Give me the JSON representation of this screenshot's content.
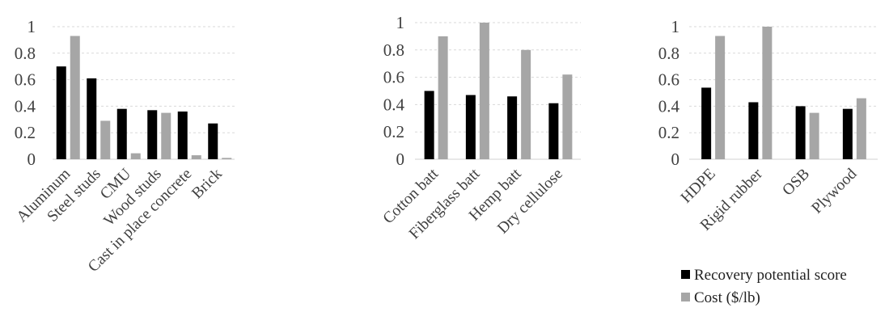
{
  "chart_data": [
    {
      "type": "bar",
      "categories": [
        "Aluminum",
        "Steel studs",
        "CMU",
        "Wood studs",
        "Cast in place concrete",
        "Brick"
      ],
      "series": [
        {
          "name": "Recovery potential score",
          "values": [
            0.7,
            0.61,
            0.38,
            0.37,
            0.36,
            0.27
          ]
        },
        {
          "name": "Cost ($/lb)",
          "values": [
            0.93,
            0.29,
            0.045,
            0.35,
            0.03,
            0.01
          ]
        }
      ],
      "yticks": [
        "0",
        "0.2",
        "0.4",
        "0.6",
        "0.8",
        "1"
      ],
      "ylim": [
        0,
        1
      ],
      "grid": true
    },
    {
      "type": "bar",
      "categories": [
        "Cotton batt",
        "Fiberglass batt",
        "Hemp batt",
        "Dry cellulose"
      ],
      "series": [
        {
          "name": "Recovery potential score",
          "values": [
            0.5,
            0.47,
            0.46,
            0.41
          ]
        },
        {
          "name": "Cost ($/lb)",
          "values": [
            0.9,
            1.0,
            0.8,
            0.62
          ]
        }
      ],
      "yticks": [
        "0",
        "0.2",
        "0.4",
        "0.6",
        "0.8",
        "1"
      ],
      "ylim": [
        0,
        1
      ],
      "grid": true
    },
    {
      "type": "bar",
      "categories": [
        "HDPE",
        "Rigid rubber",
        "OSB",
        "Plywood"
      ],
      "series": [
        {
          "name": "Recovery potential score",
          "values": [
            0.54,
            0.43,
            0.4,
            0.38
          ]
        },
        {
          "name": "Cost ($/lb)",
          "values": [
            0.93,
            1.0,
            0.35,
            0.46
          ]
        }
      ],
      "yticks": [
        "0",
        "0.2",
        "0.4",
        "0.6",
        "0.8",
        "1"
      ],
      "ylim": [
        0,
        1
      ],
      "grid": true
    }
  ],
  "legend": {
    "placement": "bottom-right",
    "items": [
      {
        "label": "Recovery potential score",
        "color": "#000000"
      },
      {
        "label": "Cost ($/lb)",
        "color": "#a6a6a6"
      }
    ]
  },
  "colors": {
    "series1": "#000000",
    "series2": "#a6a6a6",
    "gridline": "#d9d9d9",
    "baseline": "#d9d9d9",
    "text": "#404040"
  }
}
